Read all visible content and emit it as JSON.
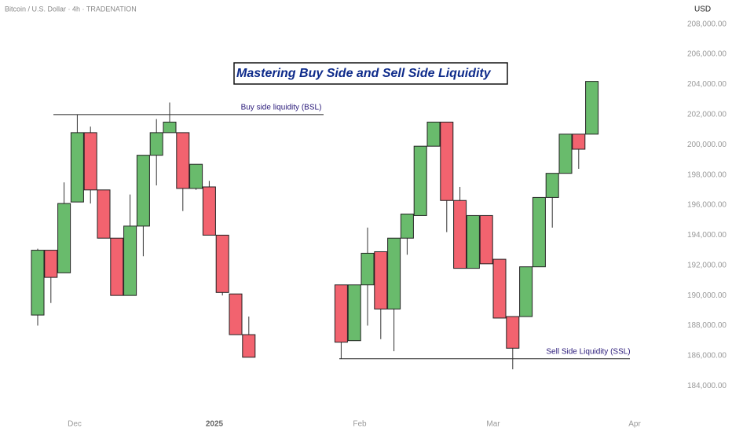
{
  "header": "Bitcoin / U.S. Dollar · 4h · TRADENATION",
  "chart_data": {
    "type": "candlestick",
    "title": "Mastering Buy Side and Sell Side Liquidity",
    "currency": "USD",
    "categories": [
      null,
      null,
      null,
      null,
      null,
      null,
      null,
      null,
      null,
      null,
      null,
      null,
      null,
      null,
      null,
      null,
      null,
      null,
      null,
      null,
      null,
      null,
      null,
      null,
      null,
      null,
      null,
      null,
      null,
      null,
      null,
      null,
      null,
      null,
      null,
      null,
      null,
      null,
      null,
      null,
      null,
      null,
      null
    ],
    "open": [
      188700,
      193000,
      191500,
      196200,
      200800,
      197000,
      193800,
      190000,
      194600,
      199300,
      200800,
      200800,
      197100,
      197200,
      194000,
      190100,
      187400,
      null,
      null,
      null,
      null,
      null,
      null,
      190700,
      187000,
      190700,
      192900,
      189100,
      193800,
      195300,
      199900,
      201500,
      196300,
      191800,
      195300,
      192400,
      188600,
      188600,
      191900,
      196500,
      198100,
      200700,
      200700
    ],
    "high": [
      193100,
      193000,
      197500,
      202000,
      201200,
      197000,
      193800,
      196700,
      199300,
      201700,
      202800,
      200800,
      198700,
      197600,
      194000,
      190100,
      188600,
      null,
      null,
      null,
      null,
      null,
      null,
      190700,
      190700,
      194500,
      192900,
      193800,
      195400,
      199900,
      201500,
      201500,
      197200,
      195300,
      195300,
      192400,
      188600,
      191900,
      196500,
      198100,
      200700,
      200700,
      204200
    ],
    "low": [
      188000,
      189500,
      191500,
      196200,
      196100,
      193800,
      190000,
      190000,
      192600,
      197300,
      200800,
      195600,
      197000,
      194000,
      190000,
      187400,
      185900,
      null,
      null,
      null,
      null,
      null,
      null,
      185800,
      187000,
      188000,
      187100,
      186300,
      192700,
      195300,
      199900,
      194200,
      191800,
      191800,
      192100,
      188500,
      185100,
      188600,
      191900,
      194500,
      198100,
      198400,
      200700
    ],
    "close": [
      193000,
      191200,
      196100,
      200800,
      197000,
      193800,
      190000,
      194600,
      199300,
      200800,
      201500,
      197100,
      198700,
      194000,
      190200,
      187400,
      185900,
      null,
      null,
      null,
      null,
      null,
      null,
      186900,
      190700,
      192800,
      189100,
      193800,
      195400,
      199900,
      201500,
      196300,
      191800,
      195300,
      192100,
      188500,
      186500,
      191900,
      196500,
      198100,
      200700,
      199700,
      204200
    ],
    "up_color": "#69bb6c",
    "down_color": "#f2636f",
    "ylim": [
      182400,
      209600
    ],
    "yticks": [
      {
        "value": 184000,
        "label": "184,000.00"
      },
      {
        "value": 186000,
        "label": "186,000.00"
      },
      {
        "value": 188000,
        "label": "188,000.00"
      },
      {
        "value": 190000,
        "label": "190,000.00"
      },
      {
        "value": 192000,
        "label": "192,000.00"
      },
      {
        "value": 194000,
        "label": "194,000.00"
      },
      {
        "value": 196000,
        "label": "196,000.00"
      },
      {
        "value": 198000,
        "label": "198,000.00"
      },
      {
        "value": 200000,
        "label": "200,000.00"
      },
      {
        "value": 202000,
        "label": "202,000.00"
      },
      {
        "value": 204000,
        "label": "204,000.00"
      },
      {
        "value": 206000,
        "label": "206,000.00"
      },
      {
        "value": 208000,
        "label": "208,000.00"
      }
    ],
    "x_labels": [
      "Dec",
      "2025",
      "Feb",
      "Mar",
      "Apr"
    ],
    "annotations": [
      {
        "text": "Buy side liquidity (BSL)",
        "value": 202000
      },
      {
        "text": "Sell Side Liquidity (SSL)",
        "value": 185800
      }
    ]
  }
}
